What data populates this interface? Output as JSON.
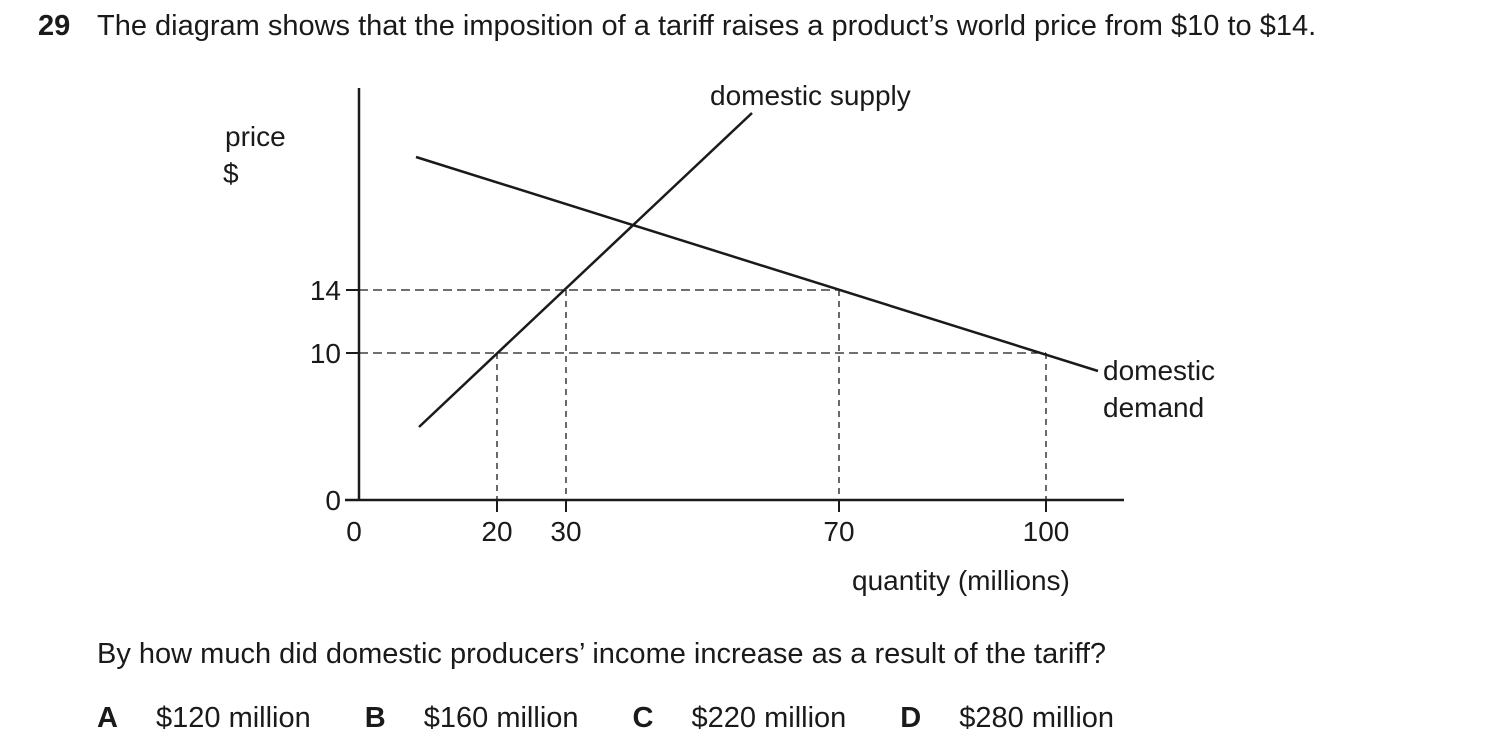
{
  "question": {
    "number": "29",
    "stem": "The diagram shows that the imposition of a tariff raises a product’s world price from $10 to $14.",
    "prompt": "By how much did domestic producers’ income increase as a result of the tariff?",
    "options": [
      {
        "letter": "A",
        "text": "$120 million"
      },
      {
        "letter": "B",
        "text": "$160 million"
      },
      {
        "letter": "C",
        "text": "$220 million"
      },
      {
        "letter": "D",
        "text": "$280 million"
      }
    ]
  },
  "diagram": {
    "y_label_line1": "price",
    "y_label_line2": "$",
    "x_label": "quantity (millions)",
    "supply_label": "domestic supply",
    "demand_label_line1": "domestic",
    "demand_label_line2": "demand",
    "y_ticks": [
      "14",
      "10",
      "0"
    ],
    "x_ticks": [
      "0",
      "20",
      "30",
      "70",
      "100"
    ]
  }
}
